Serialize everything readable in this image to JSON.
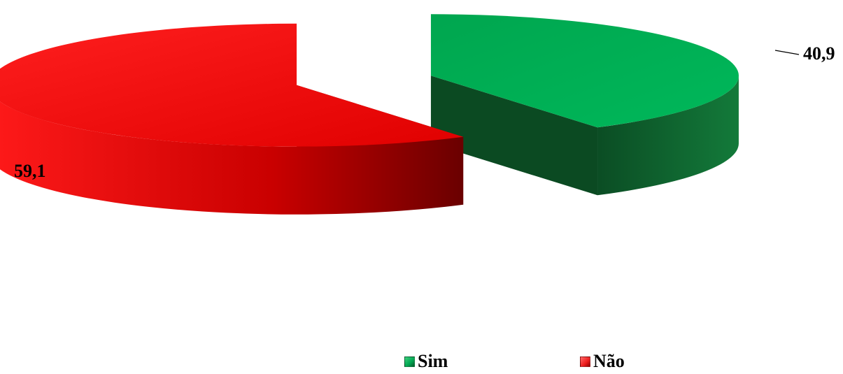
{
  "chart_data": {
    "type": "pie",
    "title": "",
    "series": [
      {
        "name": "",
        "values": [
          40.9,
          59.1
        ],
        "labels": [
          "40,9",
          "59,1"
        ]
      }
    ],
    "categories": [
      "Sim",
      "Não"
    ],
    "colors": {
      "Sim": "#00a651",
      "Sim_side": "#0a5a2c",
      "Não": "#ee1c1c",
      "Não_side": "#b00000"
    },
    "legend": "bottom",
    "style": "3d-exploded"
  }
}
